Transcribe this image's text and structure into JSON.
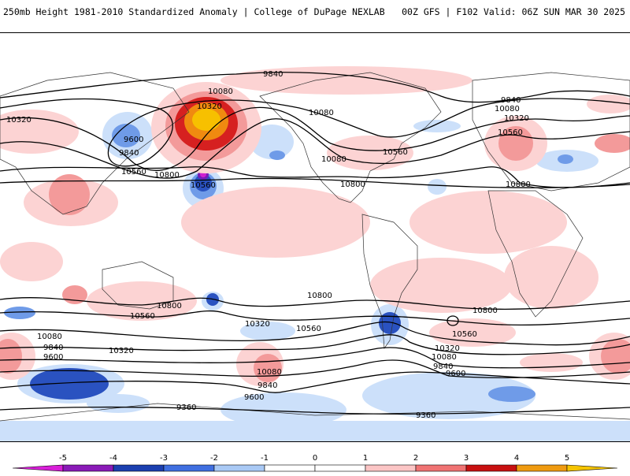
{
  "header": {
    "left_title": "250mb Height 1981-2010 Standardized Anomaly | College of DuPage NEXLAB",
    "right_title": "00Z GFS | F102 Valid: 06Z SUN MAR 30 2025"
  },
  "colorbar": {
    "tick_labels": [
      "-5",
      "-4",
      "-3",
      "-2",
      "-1",
      "0",
      "1",
      "2",
      "3",
      "4",
      "5"
    ],
    "colors": [
      "#d81fd8",
      "#8a1ab8",
      "#1b3fb0",
      "#3f6fe0",
      "#a9c9f5",
      "#ffffff",
      "#ffffff",
      "#fbc5c5",
      "#f07373",
      "#c81010",
      "#ef9a10",
      "#f5c400"
    ]
  },
  "contour_labels": {
    "north": [
      "9840",
      "10080",
      "10320",
      "10080",
      "9600",
      "9840",
      "10560",
      "10800",
      "10560",
      "10320",
      "10080",
      "10320",
      "10560",
      "10800",
      "9840",
      "10080",
      "10320",
      "10560",
      "10800"
    ],
    "south": [
      "10800",
      "10560",
      "10320",
      "10080",
      "9840",
      "9600",
      "10800",
      "10560",
      "10320",
      "10080",
      "9840",
      "9600",
      "10800",
      "10560",
      "10320",
      "10080",
      "9840",
      "9600",
      "9360",
      "9360"
    ]
  },
  "colors": {
    "neg1": "#cce0fa",
    "neg2": "#6f9be8",
    "neg3": "#2a52c0",
    "neg4": "#7a1ab8",
    "pos1": "#fcd3d3",
    "pos2": "#f39a9a",
    "pos3": "#d62020",
    "pos4": "#f08a10",
    "pos5": "#f7c000",
    "neg5": "#d020d0"
  }
}
